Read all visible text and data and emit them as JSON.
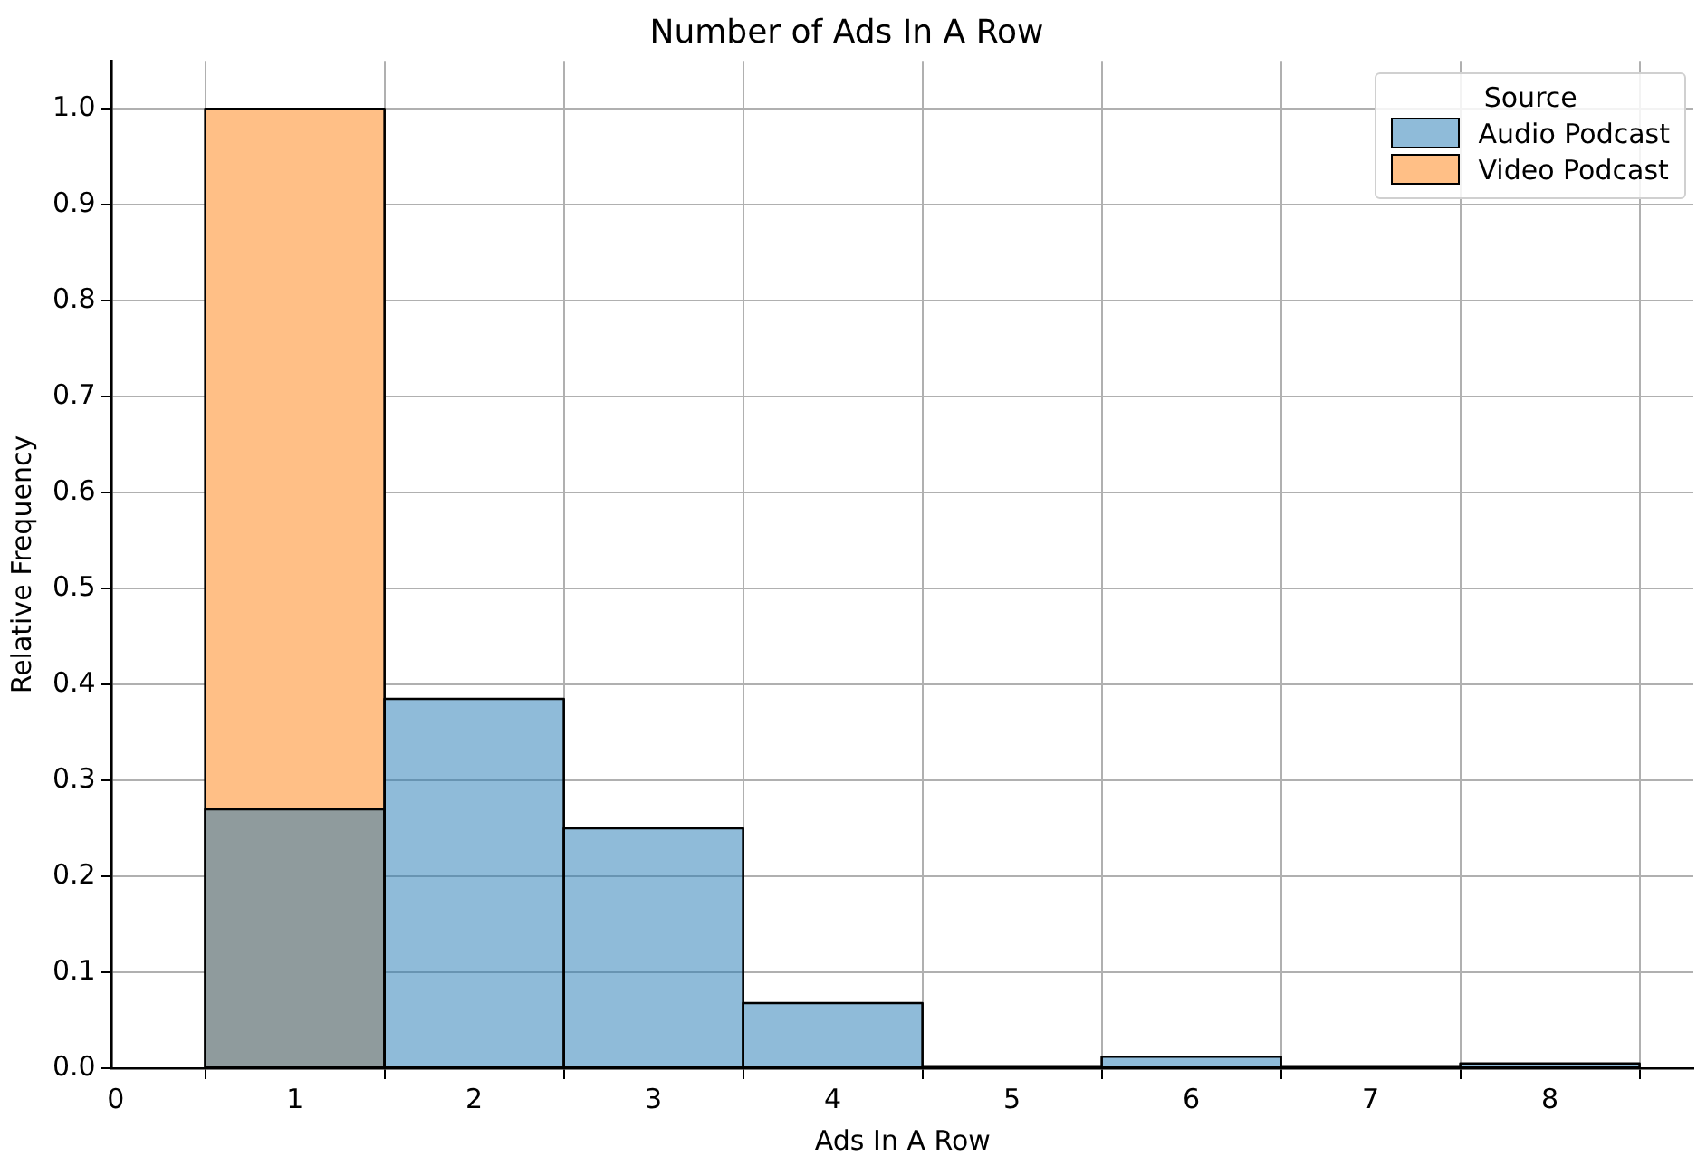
{
  "chart_data": {
    "type": "histogram",
    "title": "Number of Ads In A Row",
    "xlabel": "Ads In A Row",
    "ylabel": "Relative Frequency",
    "legend_title": "Source",
    "legend": "top right",
    "grid": true,
    "bins": [
      0.5,
      1.5,
      2.5,
      3.5,
      4.5,
      5.5,
      6.5,
      7.5,
      8.5
    ],
    "series": [
      {
        "name": "Audio Podcast",
        "color": "#8fbbd9",
        "values": [
          0.27,
          0.385,
          0.25,
          0.068,
          0.002,
          0.012,
          0.002,
          0.005
        ]
      },
      {
        "name": "Video Podcast",
        "color": "#ffbf86",
        "values": [
          1.0,
          null,
          null,
          null,
          null,
          null,
          null,
          null
        ]
      }
    ],
    "xlim": [
      -0.02,
      8.8
    ],
    "xticks": [
      0,
      1,
      2,
      3,
      4,
      5,
      6,
      7,
      8
    ],
    "ylim": [
      0,
      1.05
    ],
    "yticks": [
      {
        "value": 0,
        "label": "0.0"
      },
      0.1,
      0.2,
      0.3,
      0.4,
      0.5,
      0.6,
      0.7,
      0.8,
      0.9,
      {
        "value": 1,
        "label": "1.0"
      }
    ]
  }
}
